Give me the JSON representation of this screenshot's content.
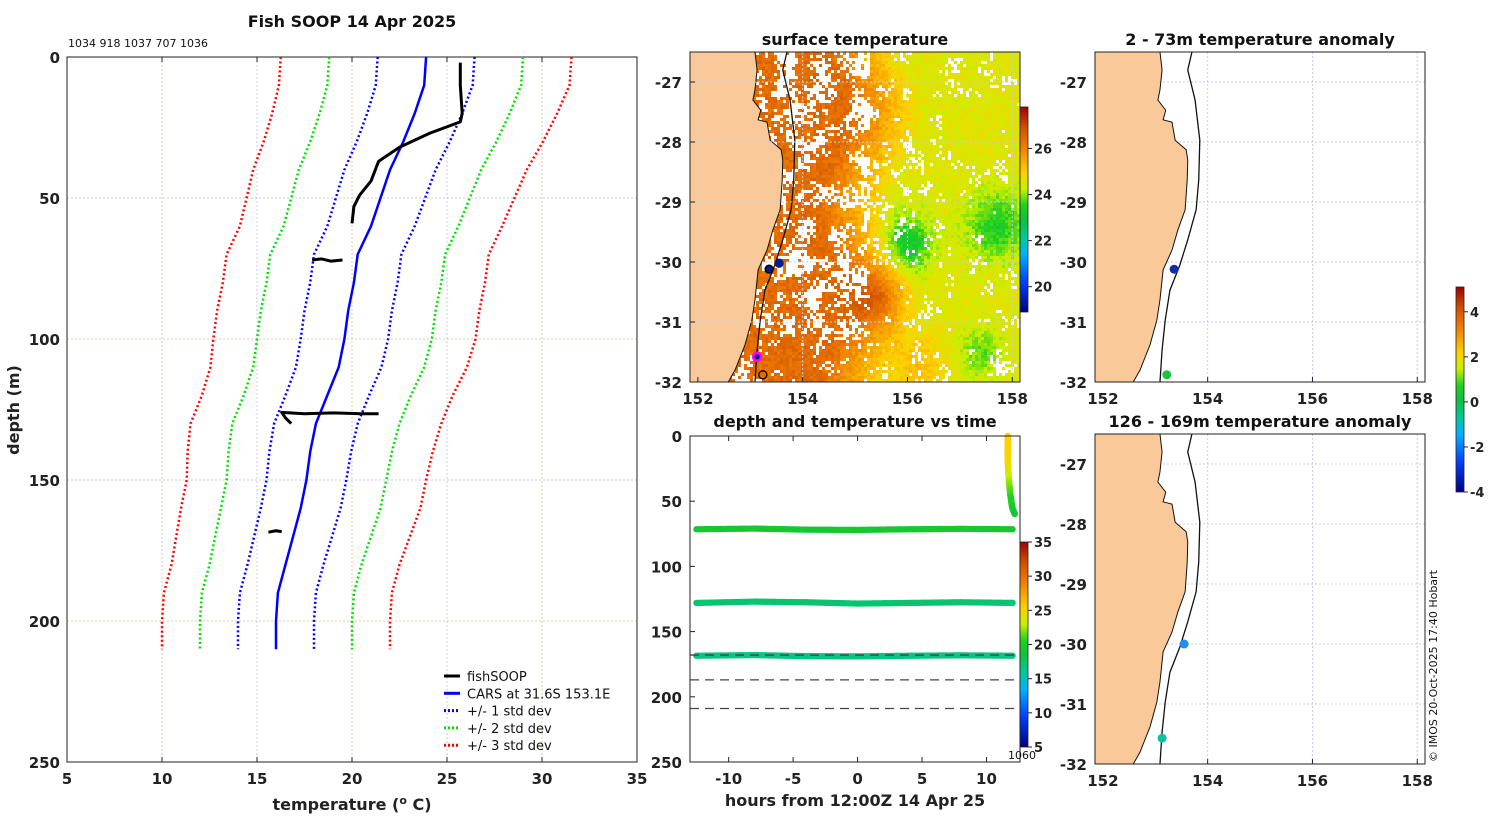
{
  "colors": {
    "land": "#f9c99a",
    "fishsoop": "#000000",
    "cars": "#0000ff",
    "std1": "#0000ff",
    "std2": "#00e000",
    "std3": "#ff0000"
  },
  "credit": "© IMOS 20-Oct-2025 17:40 Hobart",
  "chart_data": [
    {
      "id": "profile",
      "type": "line",
      "title": "Fish SOOP 14 Apr 2025",
      "subtitle": "1034 918 1037 707 1036",
      "xlabel": "temperature (",
      "xlabel_sup": "o",
      "xlabel_end": " C)",
      "ylabel": "depth (m)",
      "xlim": [
        5,
        35
      ],
      "ylim": [
        0,
        250
      ],
      "y_reversed": true,
      "grid": true,
      "xticks": [
        5,
        10,
        15,
        20,
        25,
        30,
        35
      ],
      "yticks": [
        0,
        50,
        100,
        150,
        200,
        250
      ],
      "legend_position": "bottom-right",
      "legend": [
        "fishSOOP",
        "CARS at 31.6S 153.1E",
        "+/- 1 std dev",
        "+/- 2 std dev",
        "+/- 3 std dev"
      ],
      "fishsoop_segments": [
        [
          [
            25.7,
            2
          ],
          [
            25.7,
            10
          ],
          [
            25.8,
            20
          ],
          [
            25.7,
            23
          ],
          [
            24.1,
            27
          ],
          [
            22.5,
            32
          ],
          [
            21.4,
            37
          ],
          [
            21.0,
            44
          ],
          [
            20.4,
            49
          ],
          [
            20.1,
            53
          ],
          [
            20.0,
            59
          ]
        ],
        [
          [
            17.9,
            72
          ],
          [
            18.4,
            71.6
          ],
          [
            18.9,
            72.4
          ],
          [
            19.5,
            72
          ]
        ],
        [
          [
            16.8,
            130
          ],
          [
            16.5,
            128
          ],
          [
            16.3,
            126
          ],
          [
            17.5,
            126.5
          ],
          [
            19.0,
            126.2
          ],
          [
            20.5,
            126.5
          ],
          [
            21.4,
            126.5
          ]
        ],
        [
          [
            15.6,
            168.5
          ],
          [
            16.0,
            168
          ],
          [
            16.3,
            168.3
          ]
        ]
      ],
      "cars": {
        "depth": [
          0,
          10,
          20,
          30,
          40,
          50,
          60,
          70,
          80,
          90,
          100,
          110,
          120,
          130,
          140,
          150,
          160,
          170,
          180,
          190,
          200,
          210
        ],
        "mean": [
          23.9,
          23.8,
          23.3,
          22.7,
          22.0,
          21.5,
          21.0,
          20.3,
          20.1,
          19.8,
          19.6,
          19.3,
          18.7,
          18.1,
          17.8,
          17.6,
          17.3,
          16.9,
          16.5,
          16.1,
          16.0,
          16.0
        ],
        "std": [
          2.55,
          2.55,
          2.5,
          2.45,
          2.4,
          2.35,
          2.3,
          2.3,
          2.3,
          2.3,
          2.3,
          2.25,
          2.2,
          2.2,
          2.15,
          2.1,
          2.1,
          2.05,
          2.0,
          2.0,
          2.0,
          2.0
        ]
      }
    },
    {
      "id": "sst",
      "type": "heatmap",
      "title": "surface temperature",
      "xlim": [
        151.85,
        158.15
      ],
      "ylim": [
        -32,
        -26.5
      ],
      "xticks": [
        152,
        154,
        156,
        158
      ],
      "yticks": [
        -27,
        -28,
        -29,
        -30,
        -31,
        -32
      ],
      "colorbar": {
        "clim": [
          18.9,
          27.8
        ],
        "ticks": [
          20,
          22,
          24,
          26
        ]
      },
      "markers": [
        {
          "lon": 153.55,
          "lat": -30.02,
          "fill": "#0a1a80",
          "stroke": "#0a1a80"
        },
        {
          "lon": 153.36,
          "lat": -30.12,
          "fill": "#0a1a80",
          "stroke": "#000000"
        },
        {
          "lon": 153.13,
          "lat": -31.58,
          "fill": "#0a1a80",
          "stroke": "#ff00ff"
        },
        {
          "lon": 153.24,
          "lat": -31.88,
          "fill": "none",
          "stroke": "#000000"
        }
      ]
    },
    {
      "id": "timeplot",
      "type": "scatter",
      "title": "depth and temperature vs time",
      "xlabel": "hours from 12:00Z 14 Apr 25",
      "xlim": [
        -13,
        12.6
      ],
      "ylim": [
        0,
        250
      ],
      "y_reversed": true,
      "xticks": [
        -10,
        -5,
        0,
        5,
        10
      ],
      "yticks": [
        0,
        50,
        100,
        150,
        200,
        250
      ],
      "colorbar": {
        "clim": [
          5,
          35
        ],
        "ticks": [
          5,
          10,
          15,
          20,
          25,
          30,
          35
        ],
        "label": "1060"
      },
      "dashed_depths": [
        168,
        187,
        209
      ],
      "tracks": [
        {
          "hours": [
            -12.5,
            -8,
            -4,
            0,
            4,
            8,
            12.2
          ],
          "depth": [
            71.5,
            71,
            71.8,
            72,
            71.5,
            71.2,
            71.5
          ],
          "temp": [
            19.4,
            19.5,
            19.3,
            19.4,
            19.5,
            19.6,
            19.4
          ]
        },
        {
          "hours": [
            -12.5,
            -8,
            -4,
            0,
            4,
            8,
            12.2
          ],
          "depth": [
            128,
            127,
            127.5,
            128.5,
            128,
            127.5,
            128
          ],
          "temp": [
            17.2,
            17.1,
            17.2,
            17.1,
            17.3,
            17.2,
            17.0
          ]
        },
        {
          "hours": [
            -12.5,
            -8,
            -4,
            0,
            4,
            8,
            12.2
          ],
          "depth": [
            168.5,
            168,
            168.8,
            169,
            168.5,
            168.2,
            168.5
          ],
          "temp": [
            16.6,
            16.5,
            16.6,
            16.7,
            16.5,
            16.6,
            16.5
          ]
        },
        {
          "hours": [
            11.65,
            11.65,
            11.66,
            11.7,
            11.75,
            11.85,
            12.0,
            12.2
          ],
          "depth": [
            0,
            10,
            20,
            28,
            35,
            45,
            55,
            60
          ],
          "temp": [
            25.5,
            25.3,
            25.0,
            24.0,
            22.5,
            21.0,
            20.0,
            19.5
          ]
        }
      ]
    },
    {
      "id": "anom_shallow",
      "type": "scatter",
      "title": "2 - 73m temperature anomaly",
      "xlim": [
        151.85,
        158.15
      ],
      "ylim": [
        -32,
        -26.5
      ],
      "xticks": [
        152,
        154,
        156,
        158
      ],
      "yticks": [
        -27,
        -28,
        -29,
        -30,
        -31,
        -32
      ],
      "points": [
        {
          "lon": 153.36,
          "lat": -30.12,
          "anomaly": -3.5,
          "color": "#102ca8"
        },
        {
          "lon": 153.22,
          "lat": -31.88,
          "anomaly": 0.2,
          "color": "#20c040"
        }
      ]
    },
    {
      "id": "anom_deep",
      "type": "scatter",
      "title": "126 - 169m temperature anomaly",
      "xlim": [
        151.85,
        158.15
      ],
      "ylim": [
        -32,
        -26.5
      ],
      "xticks": [
        152,
        154,
        156,
        158
      ],
      "yticks": [
        -27,
        -28,
        -29,
        -30,
        -31,
        -32
      ],
      "points": [
        {
          "lon": 153.55,
          "lat": -30.0,
          "anomaly": -2.5,
          "color": "#2090f0"
        },
        {
          "lon": 153.13,
          "lat": -31.57,
          "anomaly": -1.5,
          "color": "#10c0a0"
        }
      ]
    },
    {
      "id": "anomaly_colorbar",
      "type": "heatmap",
      "clim": [
        -4,
        5.1
      ],
      "ticks": [
        -4,
        -2,
        0,
        2,
        4
      ]
    }
  ],
  "coast": [
    [
      153.09,
      -26.5
    ],
    [
      153.13,
      -26.8
    ],
    [
      153.09,
      -27.13
    ],
    [
      153.05,
      -27.3
    ],
    [
      153.2,
      -27.47
    ],
    [
      153.15,
      -27.63
    ],
    [
      153.32,
      -27.67
    ],
    [
      153.38,
      -27.97
    ],
    [
      153.59,
      -28.13
    ],
    [
      153.62,
      -28.3
    ],
    [
      153.61,
      -28.63
    ],
    [
      153.57,
      -29.13
    ],
    [
      153.43,
      -29.47
    ],
    [
      153.32,
      -29.8
    ],
    [
      153.15,
      -30.13
    ],
    [
      153.09,
      -30.63
    ],
    [
      153.03,
      -30.97
    ],
    [
      152.9,
      -31.38
    ],
    [
      152.71,
      -31.8
    ],
    [
      152.58,
      -32
    ]
  ],
  "isobath": [
    [
      153.7,
      -26.5
    ],
    [
      153.62,
      -26.8
    ],
    [
      153.76,
      -27.3
    ],
    [
      153.85,
      -27.97
    ],
    [
      153.83,
      -28.63
    ],
    [
      153.78,
      -29.13
    ],
    [
      153.62,
      -29.63
    ],
    [
      153.47,
      -30.05
    ],
    [
      153.28,
      -30.47
    ],
    [
      153.19,
      -30.97
    ],
    [
      153.13,
      -31.47
    ],
    [
      153.09,
      -32
    ]
  ]
}
